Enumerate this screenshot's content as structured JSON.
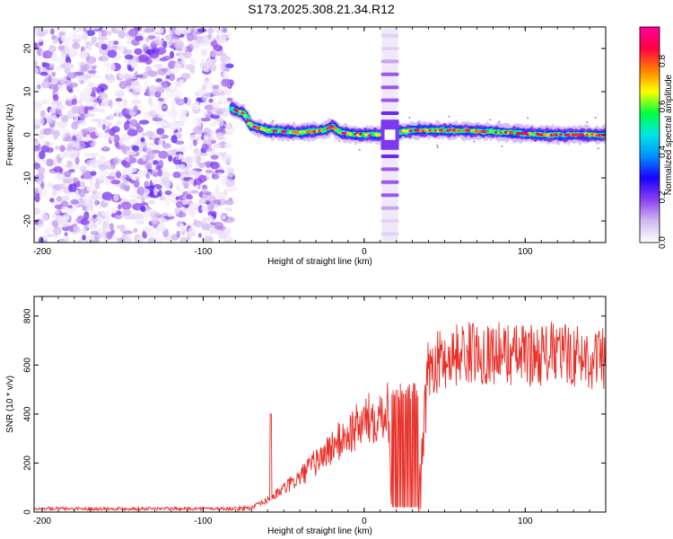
{
  "title": "S173.2025.308.21.34.R12",
  "chart_data": [
    {
      "type": "heatmap",
      "xlabel": "Height of straight line (km)",
      "ylabel": "Frequency (Hz)",
      "xlim": [
        -205,
        150
      ],
      "ylim": [
        -25,
        25
      ],
      "xticks": [
        -200,
        -100,
        0,
        100
      ],
      "yticks": [
        -20,
        -10,
        0,
        10,
        20
      ],
      "colorbar": {
        "label": "Normalized spectral amplitude",
        "range": [
          0.0,
          0.95
        ],
        "ticks": [
          "0.0",
          "0.2",
          "0.4",
          "0.6",
          "0.8"
        ],
        "tick_values": [
          0.0,
          0.2,
          0.4,
          0.6,
          0.8
        ],
        "colors": [
          "#ffffff",
          "#d2b8f0",
          "#8a3ff0",
          "#1a00ff",
          "#0090ff",
          "#00e6e6",
          "#00ff40",
          "#ffff00",
          "#ff8000",
          "#ff0040",
          "#ff00a0"
        ]
      },
      "features": {
        "noise_region_x": [
          -205,
          -80
        ],
        "band_center_hz": [
          [
            -82,
            6
          ],
          [
            -75,
            5
          ],
          [
            -70,
            2
          ],
          [
            -60,
            1
          ],
          [
            -40,
            0.5
          ],
          [
            -25,
            1
          ],
          [
            -20,
            2
          ],
          [
            -15,
            0.5
          ],
          [
            -5,
            0
          ],
          [
            10,
            0
          ],
          [
            30,
            1
          ],
          [
            60,
            1
          ],
          [
            90,
            0.5
          ],
          [
            110,
            0
          ],
          [
            150,
            0
          ]
        ],
        "harmonic_comb_x_km": 16,
        "harmonic_comb_freqs_hz": [
          -23,
          -20,
          -17,
          -14,
          -11,
          -8,
          -5,
          -3,
          3,
          5,
          8,
          11,
          14,
          17,
          20,
          23
        ]
      }
    },
    {
      "type": "line",
      "xlabel": "Height of straight line (km)",
      "ylabel": "SNR (10 * v/v)",
      "xlim": [
        -205,
        150
      ],
      "ylim": [
        0,
        880
      ],
      "xticks": [
        -200,
        -100,
        0,
        100
      ],
      "yticks": [
        0,
        200,
        400,
        600,
        800
      ],
      "color": "#e8302a",
      "trend": {
        "x": [
          -205,
          -80,
          -70,
          -60,
          -40,
          -20,
          0,
          15,
          17,
          34,
          40,
          60,
          80,
          100,
          120,
          150
        ],
        "y": [
          15,
          15,
          20,
          50,
          150,
          280,
          390,
          450,
          20,
          20,
          600,
          650,
          650,
          640,
          650,
          620
        ]
      },
      "spike": {
        "x": -58,
        "y": 400
      },
      "dropout_region_x": [
        17,
        34
      ]
    }
  ]
}
